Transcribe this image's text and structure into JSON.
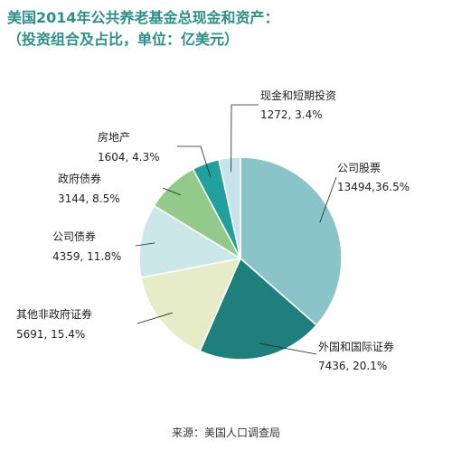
{
  "title": {
    "line1": "美国2014年公共养老基金总现金和资产：",
    "line2": "（投资组合及占比，单位：亿美元）"
  },
  "source": "来源：美国人口调查局",
  "chart_data": {
    "type": "pie",
    "title": "美国2014年公共养老基金总现金和资产：（投资组合及占比，单位：亿美元）",
    "slices": [
      {
        "name": "公司股票",
        "value": 13494,
        "percent": 36.5,
        "value_label": "13494,36.5%",
        "color": "#8ac4c9"
      },
      {
        "name": "外国和国际证券",
        "value": 7436,
        "percent": 20.1,
        "value_label": "7436, 20.1%",
        "color": "#1f7f7c"
      },
      {
        "name": "其他非政府证券",
        "value": 5691,
        "percent": 15.4,
        "value_label": "5691, 15.4%",
        "color": "#e6ecc8"
      },
      {
        "name": "公司债券",
        "value": 4359,
        "percent": 11.8,
        "value_label": "4359, 11.8%",
        "color": "#cce7ea"
      },
      {
        "name": "政府债券",
        "value": 3144,
        "percent": 8.5,
        "value_label": "3144, 8.5%",
        "color": "#93c98a"
      },
      {
        "name": "房地产",
        "value": 1604,
        "percent": 4.3,
        "value_label": "1604, 4.3%",
        "color": "#239fa0"
      },
      {
        "name": "现金和短期投资",
        "value": 1272,
        "percent": 3.4,
        "value_label": "1272, 3.4%",
        "color": "#c8e2ea"
      }
    ]
  }
}
